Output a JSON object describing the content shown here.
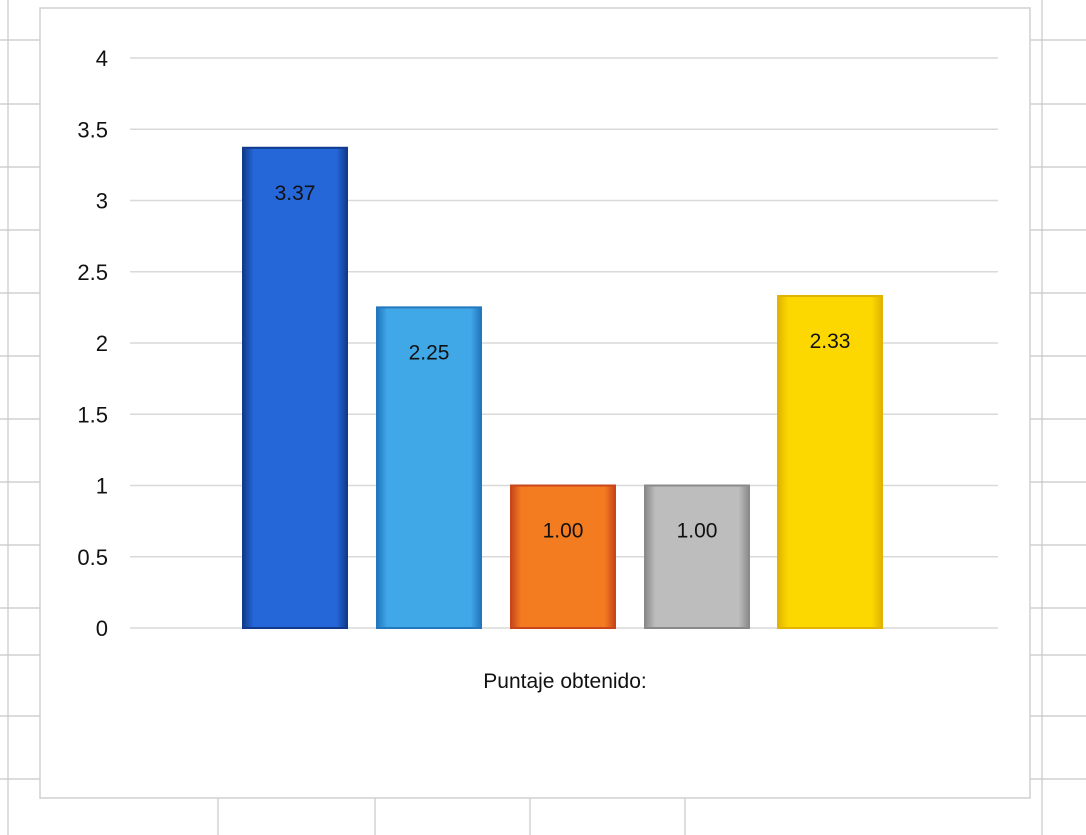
{
  "chart_data": {
    "type": "bar",
    "title": "",
    "xlabel": "Puntaje obtenido:",
    "ylabel": "",
    "categories": [
      "",
      "",
      "",
      "",
      ""
    ],
    "values": [
      3.37,
      2.25,
      1.0,
      1.0,
      2.33
    ],
    "value_labels": [
      "3.37",
      "2.25",
      "1.00",
      "1.00",
      "2.33"
    ],
    "bar_colors": [
      "#2566D8",
      "#41A8E8",
      "#F47C20",
      "#BDBDBD",
      "#FDD800"
    ],
    "bar_edge_colors": [
      "#123A8C",
      "#2277BF",
      "#C8461A",
      "#8A8A8A",
      "#E0B400"
    ],
    "ylim": [
      0,
      4
    ],
    "yticks": [
      "0",
      "0.5",
      "1",
      "1.5",
      "2",
      "2.5",
      "3",
      "3.5",
      "4"
    ],
    "grid": true,
    "legend": "none"
  },
  "colors": {
    "gridline": "#D9D9D9",
    "sheet_gridline": "#C8C8C8",
    "chart_border": "#D0D0D0",
    "background": "#FFFFFF"
  }
}
